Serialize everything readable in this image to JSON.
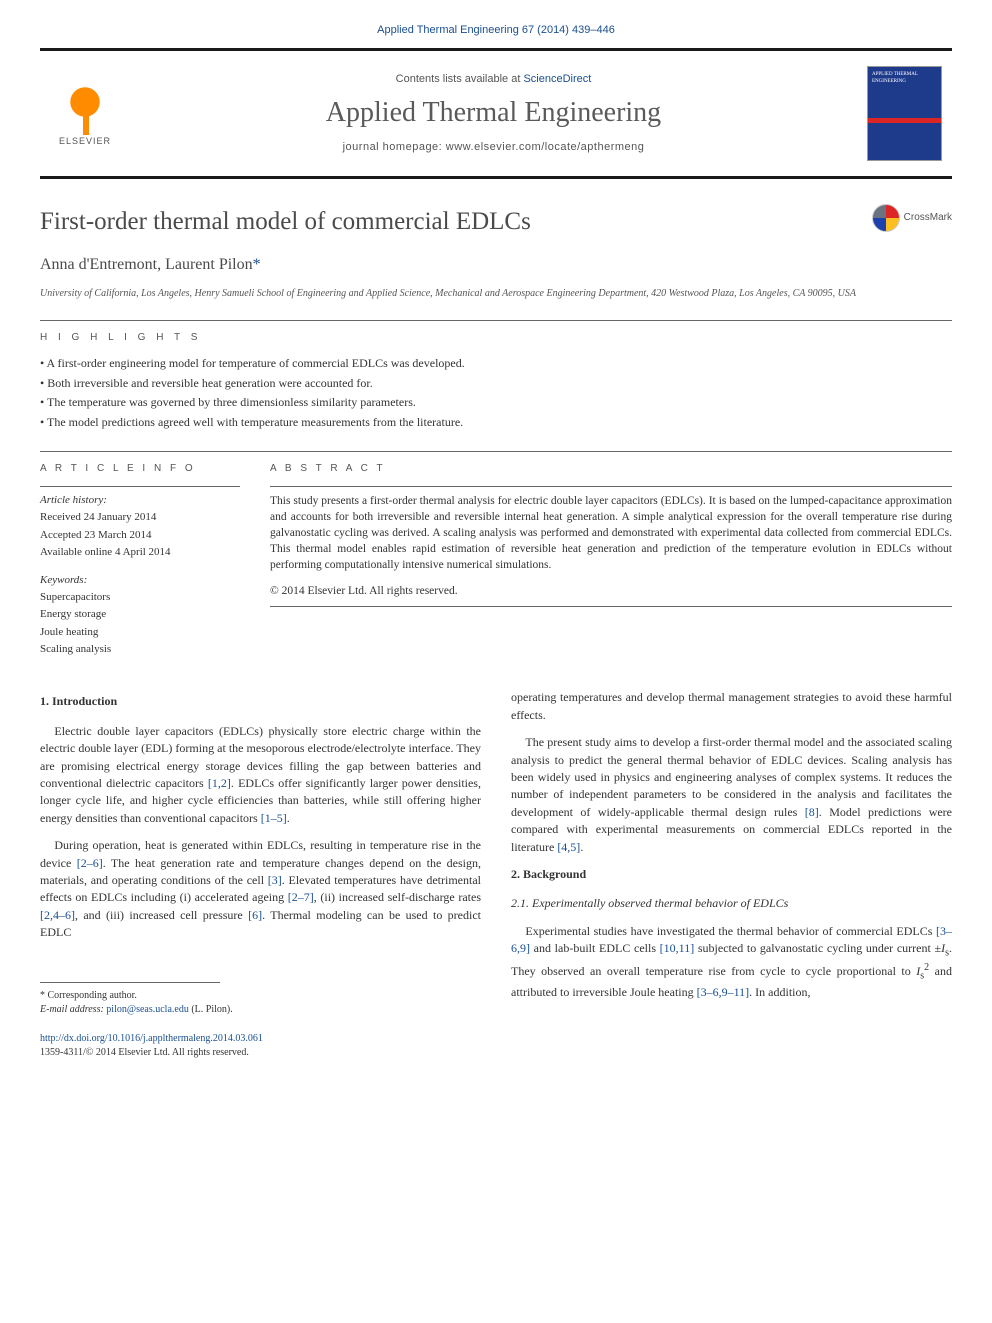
{
  "header": {
    "journal_ref": "Applied Thermal Engineering 67 (2014) 439–446",
    "contents_prefix": "Contents lists available at ",
    "contents_link": "ScienceDirect",
    "journal_name": "Applied Thermal Engineering",
    "homepage_prefix": "journal homepage: ",
    "homepage_url": "www.elsevier.com/locate/apthermeng",
    "elsevier_label": "ELSEVIER",
    "cover_title": "APPLIED THERMAL ENGINEERING"
  },
  "article": {
    "title": "First-order thermal model of commercial EDLCs",
    "crossmark_label": "CrossMark",
    "authors": "Anna d'Entremont, Laurent Pilon",
    "corr_marker": "*",
    "affiliation": "University of California, Los Angeles, Henry Samueli School of Engineering and Applied Science, Mechanical and Aerospace Engineering Department, 420 Westwood Plaza, Los Angeles, CA 90095, USA"
  },
  "highlights": {
    "label": "H I G H L I G H T S",
    "items": [
      "A first-order engineering model for temperature of commercial EDLCs was developed.",
      "Both irreversible and reversible heat generation were accounted for.",
      "The temperature was governed by three dimensionless similarity parameters.",
      "The model predictions agreed well with temperature measurements from the literature."
    ]
  },
  "article_info": {
    "label": "A R T I C L E   I N F O",
    "history_label": "Article history:",
    "received": "Received 24 January 2014",
    "accepted": "Accepted 23 March 2014",
    "online": "Available online 4 April 2014",
    "keywords_label": "Keywords:",
    "keywords": [
      "Supercapacitors",
      "Energy storage",
      "Joule heating",
      "Scaling analysis"
    ]
  },
  "abstract": {
    "label": "A B S T R A C T",
    "text": "This study presents a first-order thermal analysis for electric double layer capacitors (EDLCs). It is based on the lumped-capacitance approximation and accounts for both irreversible and reversible internal heat generation. A simple analytical expression for the overall temperature rise during galvanostatic cycling was derived. A scaling analysis was performed and demonstrated with experimental data collected from commercial EDLCs. This thermal model enables rapid estimation of reversible heat generation and prediction of the temperature evolution in EDLCs without performing computationally intensive numerical simulations.",
    "copyright": "© 2014 Elsevier Ltd. All rights reserved."
  },
  "body": {
    "intro_heading": "1. Introduction",
    "intro_p1": "Electric double layer capacitors (EDLCs) physically store electric charge within the electric double layer (EDL) forming at the mesoporous electrode/electrolyte interface. They are promising electrical energy storage devices filling the gap between batteries and conventional dielectric capacitors [1,2]. EDLCs offer significantly larger power densities, longer cycle life, and higher cycle efficiencies than batteries, while still offering higher energy densities than conventional capacitors [1–5].",
    "intro_p2": "During operation, heat is generated within EDLCs, resulting in temperature rise in the device [2–6]. The heat generation rate and temperature changes depend on the design, materials, and operating conditions of the cell [3]. Elevated temperatures have detrimental effects on EDLCs including (i) accelerated ageing [2–7], (ii) increased self-discharge rates [2,4–6], and (iii) increased cell pressure [6]. Thermal modeling can be used to predict EDLC",
    "col2_p1": "operating temperatures and develop thermal management strategies to avoid these harmful effects.",
    "col2_p2": "The present study aims to develop a first-order thermal model and the associated scaling analysis to predict the general thermal behavior of EDLC devices. Scaling analysis has been widely used in physics and engineering analyses of complex systems. It reduces the number of independent parameters to be considered in the analysis and facilitates the development of widely-applicable thermal design rules [8]. Model predictions were compared with experimental measurements on commercial EDLCs reported in the literature [4,5].",
    "background_heading": "2. Background",
    "subsec_heading": "2.1. Experimentally observed thermal behavior of EDLCs",
    "background_p1": "Experimental studies have investigated the thermal behavior of commercial EDLCs [3–6,9] and lab-built EDLC cells [10,11] subjected to galvanostatic cycling under current ±Is. They observed an overall temperature rise from cycle to cycle proportional to Is² and attributed to irreversible Joule heating [3–6,9–11]. In addition,"
  },
  "footer": {
    "corr_label": "* Corresponding author.",
    "email_label": "E-mail address: ",
    "email": "pilon@seas.ucla.edu",
    "email_suffix": " (L. Pilon).",
    "doi": "http://dx.doi.org/10.1016/j.applthermaleng.2014.03.061",
    "issn_line": "1359-4311/© 2014 Elsevier Ltd. All rights reserved."
  },
  "colors": {
    "link": "#1a4f8f",
    "text": "#333333",
    "heading": "#4a4a4a",
    "orange": "#ff8c00"
  }
}
